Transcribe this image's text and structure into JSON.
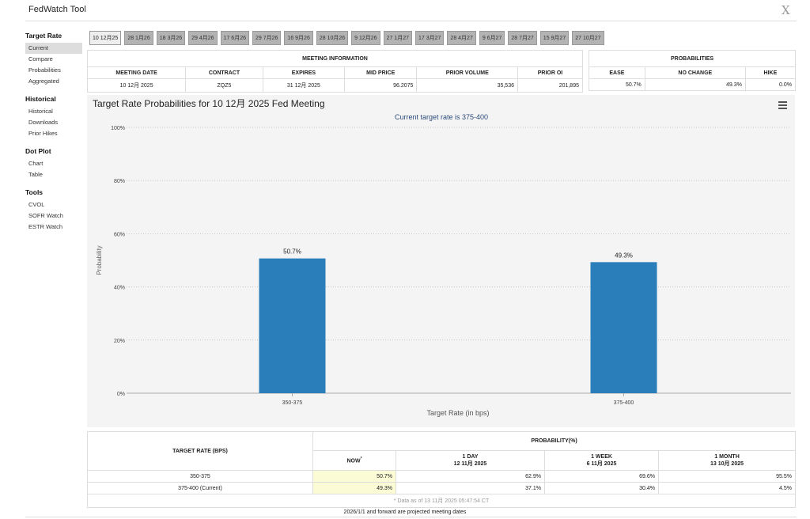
{
  "header": {
    "title": "FedWatch Tool",
    "close": "X"
  },
  "sidebar": [
    {
      "heading": "Target Rate",
      "items": [
        "Current",
        "Compare",
        "Probabilities",
        "Aggregated"
      ]
    },
    {
      "heading": "Historical",
      "items": [
        "Historical",
        "Downloads",
        "Prior Hikes"
      ]
    },
    {
      "heading": "Dot Plot",
      "items": [
        "Chart",
        "Table"
      ]
    },
    {
      "heading": "Tools",
      "items": [
        "CVOL",
        "SOFR Watch",
        "ESTR Watch"
      ]
    }
  ],
  "tabs": [
    "10 12月25",
    "28 1月26",
    "18 3月26",
    "29 4月26",
    "17 6月26",
    "29 7月26",
    "16 9月26",
    "28 10月26",
    "9 12月26",
    "27 1月27",
    "17 3月27",
    "28 4月27",
    "9 6月27",
    "28 7月27",
    "15 9月27",
    "27 10月27"
  ],
  "meeting_info": {
    "title": "MEETING INFORMATION",
    "headers": [
      "MEETING DATE",
      "CONTRACT",
      "EXPIRES",
      "MID PRICE",
      "PRIOR VOLUME",
      "PRIOR OI"
    ],
    "row": [
      "10 12月 2025",
      "ZQZ5",
      "31 12月 2025",
      "96.2075",
      "35,536",
      "201,895"
    ]
  },
  "probabilities": {
    "title": "PROBABILITIES",
    "headers": [
      "EASE",
      "NO CHANGE",
      "HIKE"
    ],
    "row": [
      "50.7%",
      "49.3%",
      "0.0%"
    ]
  },
  "chart_data": {
    "type": "bar",
    "title": "Target Rate Probabilities for 10 12月 2025 Fed Meeting",
    "subtitle": "Current target rate is 375-400",
    "x_label": "Target Rate (in bps)",
    "y_label": "Probability",
    "categories": [
      "350-375",
      "375-400"
    ],
    "values": [
      50.7,
      49.3
    ],
    "value_labels": [
      "50.7%",
      "49.3%"
    ],
    "color": "#2a7fba",
    "ylim": [
      0,
      100
    ],
    "yticks": [
      {
        "value": 0,
        "label": "0%"
      },
      {
        "value": 20,
        "label": "20%"
      },
      {
        "value": 40,
        "label": "40%"
      },
      {
        "value": 60,
        "label": "60%"
      },
      {
        "value": 80,
        "label": "80%"
      },
      {
        "value": 100,
        "label": "100%"
      }
    ],
    "grid": true
  },
  "prob_table": {
    "first_header": "TARGET RATE (BPS)",
    "group_header": "PROBABILITY(%)",
    "columns": [
      {
        "label": "NOW",
        "mark": "*"
      },
      {
        "label": "1 DAY",
        "date": "12 11月 2025"
      },
      {
        "label": "1 WEEK",
        "date": "6 11月 2025"
      },
      {
        "label": "1 MONTH",
        "date": "13 10月 2025"
      }
    ],
    "rows": [
      [
        "350-375",
        "50.7%",
        "62.9%",
        "69.6%",
        "95.5%"
      ],
      [
        "375-400 (Current)",
        "49.3%",
        "37.1%",
        "30.4%",
        "4.5%"
      ]
    ],
    "note": "* Data as of 13 11月 2025 05:47:54 CT"
  },
  "footer": "2026/1/1 and forward are projected meeting dates"
}
